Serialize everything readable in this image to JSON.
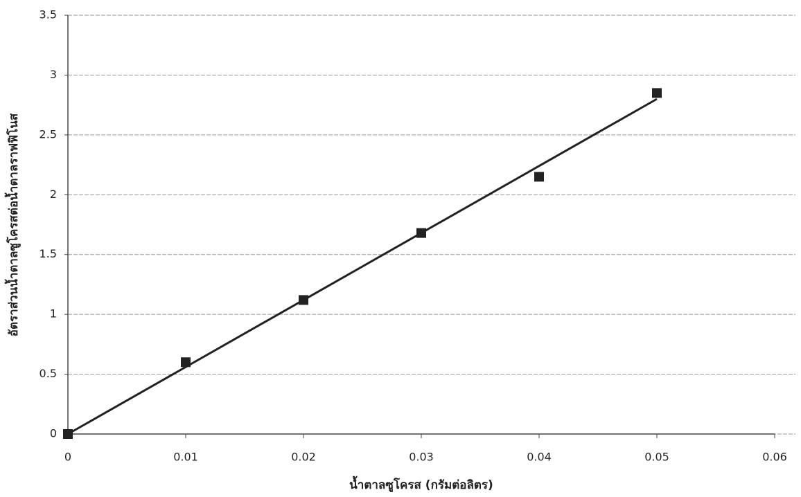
{
  "chart_data": {
    "type": "scatter",
    "x_label": "น้ำตาลซูโครส (กรัมต่อลิตร)",
    "y_label": "อัตราส่วนน้ำตาลซูโครสต่อน้ำตาลราฟฟิโนส",
    "x": [
      0,
      0.01,
      0.02,
      0.03,
      0.04,
      0.05
    ],
    "series": [
      {
        "color": "#222222",
        "values": [
          0,
          0.6,
          1.12,
          1.68,
          2.15,
          2.85
        ]
      }
    ],
    "trendline": {
      "x": [
        0,
        0.05
      ],
      "values": [
        0,
        2.8
      ],
      "color": "#222222"
    },
    "xlim": [
      0,
      0.06
    ],
    "xticks": [
      0,
      0.01,
      0.02,
      0.03,
      0.04,
      0.05,
      0.06
    ],
    "ylim": [
      0,
      3.5
    ],
    "yticks": [
      0,
      0.5,
      1,
      1.5,
      2,
      2.5,
      3,
      3.5
    ],
    "grid": true
  }
}
